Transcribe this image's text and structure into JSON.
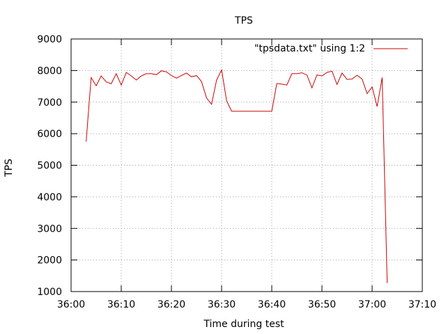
{
  "chart_data": {
    "type": "line",
    "title": "TPS",
    "xlabel": "Time during test",
    "ylabel": "TPS",
    "xlim": [
      "36:00",
      "37:10"
    ],
    "ylim": [
      1000,
      9000
    ],
    "x_ticks": [
      "36:00",
      "36:10",
      "36:20",
      "36:30",
      "36:40",
      "36:50",
      "37:00",
      "37:10"
    ],
    "y_ticks": [
      1000,
      2000,
      3000,
      4000,
      5000,
      6000,
      7000,
      8000,
      9000
    ],
    "grid": true,
    "legend": "top-right",
    "series": [
      {
        "name": "\"tpsdata.txt\" using 1:2",
        "color": "#cc0000",
        "x": [
          "36:03",
          "36:04",
          "36:05",
          "36:06",
          "36:07",
          "36:08",
          "36:09",
          "36:10",
          "36:11",
          "36:12",
          "36:13",
          "36:14",
          "36:15",
          "36:16",
          "36:17",
          "36:18",
          "36:19",
          "36:20",
          "36:21",
          "36:22",
          "36:23",
          "36:24",
          "36:25",
          "36:26",
          "36:27",
          "36:28",
          "36:29",
          "36:30",
          "36:31",
          "36:32",
          "36:33",
          "36:34",
          "36:35",
          "36:36",
          "36:37",
          "36:38",
          "36:39",
          "36:40",
          "36:41",
          "36:42",
          "36:43",
          "36:44",
          "36:45",
          "36:46",
          "36:47",
          "36:48",
          "36:49",
          "36:50",
          "36:51",
          "36:52",
          "36:53",
          "36:54",
          "36:55",
          "36:56",
          "36:57",
          "36:58",
          "36:59",
          "37:00",
          "37:01",
          "37:02",
          "37:03"
        ],
        "y": [
          5750,
          7780,
          7520,
          7830,
          7640,
          7580,
          7900,
          7540,
          7940,
          7830,
          7700,
          7830,
          7900,
          7900,
          7870,
          7990,
          7960,
          7840,
          7760,
          7840,
          7920,
          7800,
          7840,
          7650,
          7130,
          6930,
          7700,
          8020,
          7040,
          6710,
          6710,
          6710,
          6710,
          6710,
          6710,
          6710,
          6710,
          6710,
          7590,
          7570,
          7540,
          7900,
          7900,
          7930,
          7860,
          7450,
          7860,
          7830,
          7940,
          7980,
          7560,
          7920,
          7720,
          7730,
          7850,
          7730,
          7270,
          7480,
          6860,
          7780,
          1270
        ]
      }
    ]
  }
}
